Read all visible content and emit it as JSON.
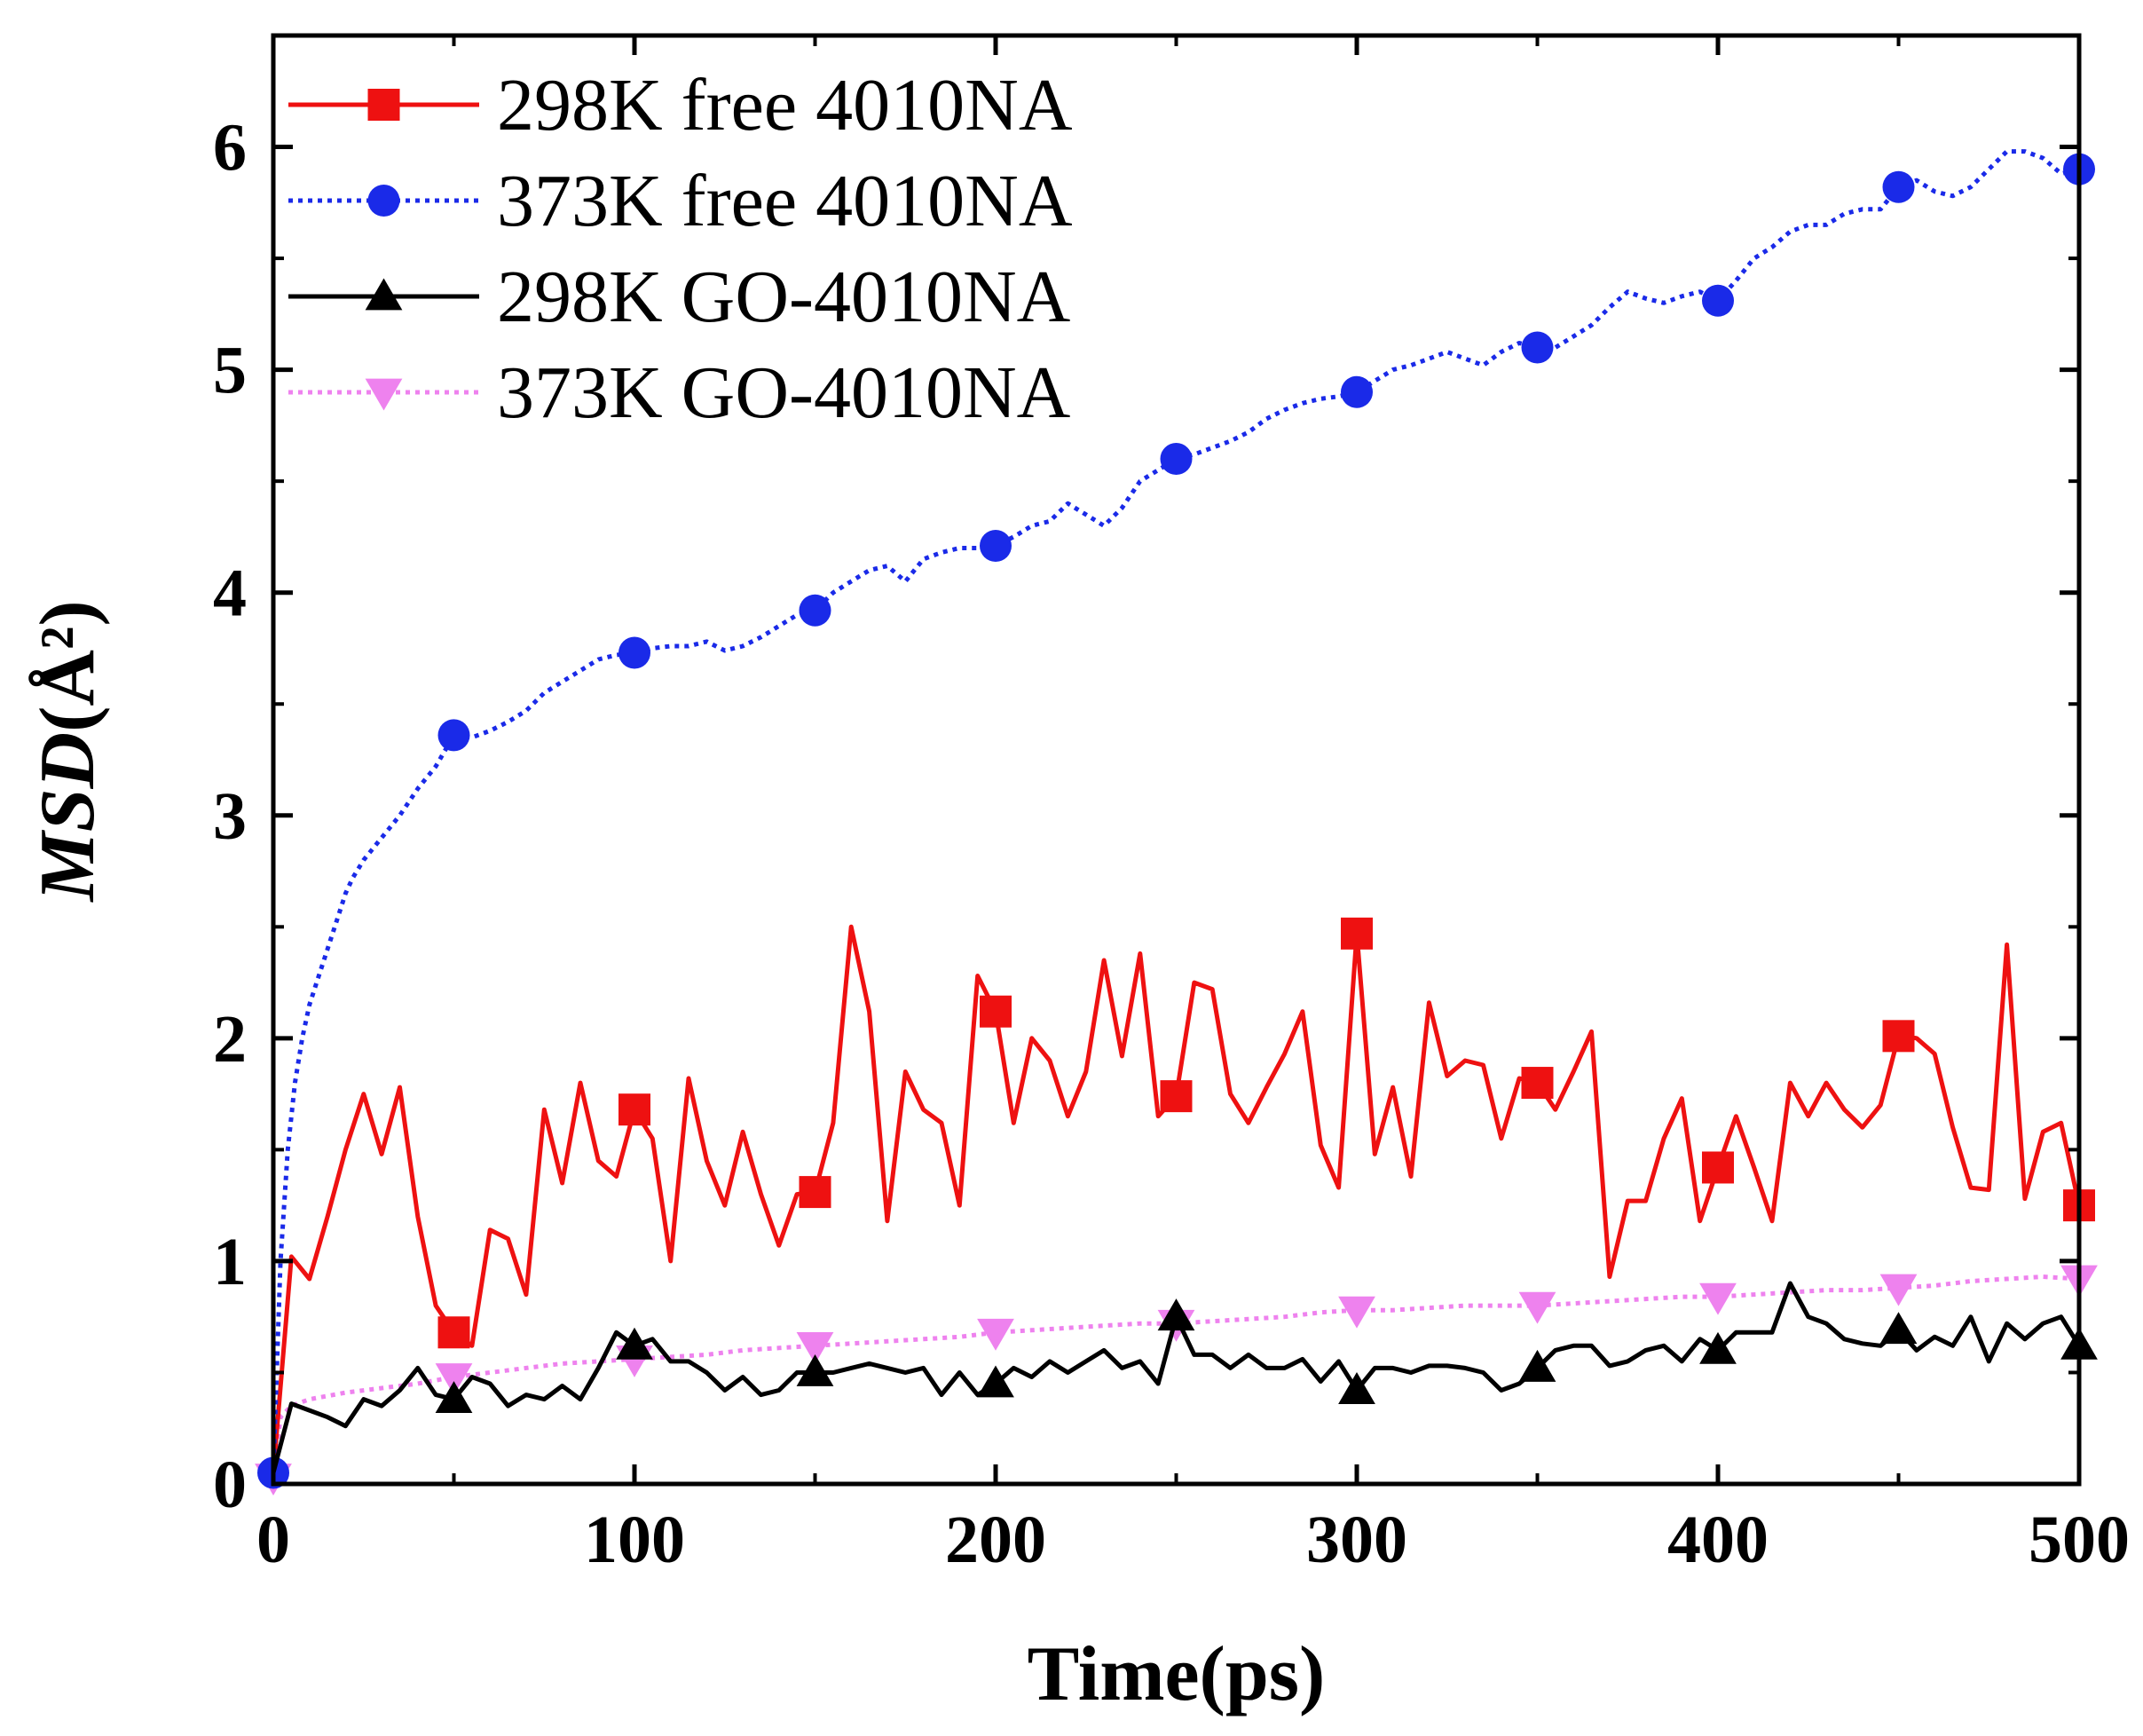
{
  "chart_data": {
    "type": "line",
    "title": "",
    "xlabel": "Time(ps)",
    "ylabel": {
      "italic": "MSD",
      "unit": "(Å²)"
    },
    "xlim": [
      0,
      500
    ],
    "ylim": [
      0,
      6.5
    ],
    "xticks": [
      0,
      100,
      200,
      300,
      400,
      500
    ],
    "xtick_labels": [
      "0",
      "100",
      "200",
      "300",
      "400",
      "500"
    ],
    "yticks": [
      0,
      1,
      2,
      3,
      4,
      5,
      6
    ],
    "ytick_labels": [
      "0",
      "1",
      "2",
      "3",
      "4",
      "5",
      "6"
    ],
    "grid": false,
    "legend_position": "top-left",
    "series": [
      {
        "name": "298K free 4010NA",
        "color": "#ee1111",
        "line_style": "solid",
        "marker": "square",
        "x": [
          0,
          5,
          10,
          15,
          20,
          25,
          30,
          35,
          40,
          45,
          50,
          55,
          60,
          65,
          70,
          75,
          80,
          85,
          90,
          95,
          100,
          105,
          110,
          115,
          120,
          125,
          130,
          135,
          140,
          145,
          150,
          155,
          160,
          165,
          170,
          175,
          180,
          185,
          190,
          195,
          200,
          205,
          210,
          215,
          220,
          225,
          230,
          235,
          240,
          245,
          250,
          255,
          260,
          265,
          270,
          275,
          280,
          285,
          290,
          295,
          300,
          305,
          310,
          315,
          320,
          325,
          330,
          335,
          340,
          345,
          350,
          355,
          360,
          365,
          370,
          375,
          380,
          385,
          390,
          395,
          400,
          405,
          410,
          415,
          420,
          425,
          430,
          435,
          440,
          445,
          450,
          455,
          460,
          465,
          470,
          475,
          480,
          485,
          490,
          495,
          500
        ],
        "values": [
          0.05,
          1.02,
          0.92,
          1.2,
          1.5,
          1.75,
          1.48,
          1.78,
          1.2,
          0.8,
          0.68,
          0.62,
          1.14,
          1.1,
          0.85,
          1.68,
          1.35,
          1.8,
          1.45,
          1.38,
          1.68,
          1.55,
          1.0,
          1.82,
          1.45,
          1.25,
          1.58,
          1.3,
          1.07,
          1.3,
          1.31,
          1.62,
          2.5,
          2.12,
          1.18,
          1.85,
          1.68,
          1.62,
          1.25,
          2.28,
          2.12,
          1.62,
          2.0,
          1.9,
          1.65,
          1.85,
          2.35,
          1.92,
          2.38,
          1.65,
          1.74,
          2.25,
          2.22,
          1.75,
          1.62,
          1.78,
          1.93,
          2.12,
          1.52,
          1.33,
          2.47,
          1.48,
          1.78,
          1.38,
          2.16,
          1.83,
          1.9,
          1.88,
          1.55,
          1.82,
          1.8,
          1.68,
          1.85,
          2.03,
          0.93,
          1.27,
          1.27,
          1.55,
          1.73,
          1.18,
          1.42,
          1.65,
          1.42,
          1.18,
          1.8,
          1.65,
          1.8,
          1.68,
          1.6,
          1.7,
          2.01,
          2.0,
          1.93,
          1.6,
          1.33,
          1.32,
          2.42,
          1.28,
          1.58,
          1.62,
          1.25
        ],
        "marker_x": [
          50,
          100,
          150,
          200,
          250,
          300,
          350,
          400,
          450,
          500
        ],
        "marker_values": [
          0.68,
          1.68,
          1.31,
          2.12,
          1.74,
          2.47,
          1.8,
          1.42,
          2.01,
          1.25
        ]
      },
      {
        "name": "373K free 4010NA",
        "color": "#1a2ae8",
        "line_style": "dotted",
        "marker": "circle",
        "x": [
          0,
          2,
          4,
          6,
          8,
          10,
          12,
          15,
          18,
          20,
          22,
          25,
          30,
          35,
          40,
          45,
          50,
          55,
          60,
          65,
          70,
          75,
          80,
          85,
          90,
          95,
          100,
          105,
          110,
          115,
          120,
          125,
          130,
          135,
          140,
          145,
          150,
          155,
          160,
          165,
          170,
          175,
          180,
          185,
          190,
          195,
          200,
          205,
          210,
          215,
          220,
          225,
          230,
          235,
          240,
          245,
          250,
          255,
          260,
          265,
          270,
          275,
          280,
          285,
          290,
          295,
          300,
          305,
          310,
          315,
          320,
          325,
          330,
          335,
          340,
          345,
          350,
          355,
          360,
          365,
          370,
          375,
          380,
          385,
          390,
          395,
          400,
          405,
          410,
          415,
          420,
          425,
          430,
          435,
          440,
          445,
          450,
          455,
          460,
          465,
          470,
          475,
          480,
          485,
          490,
          495,
          500
        ],
        "values": [
          0.05,
          1.0,
          1.5,
          1.8,
          2.0,
          2.15,
          2.25,
          2.4,
          2.55,
          2.65,
          2.72,
          2.8,
          2.9,
          3.0,
          3.12,
          3.22,
          3.36,
          3.35,
          3.38,
          3.42,
          3.47,
          3.55,
          3.6,
          3.65,
          3.7,
          3.72,
          3.73,
          3.75,
          3.76,
          3.76,
          3.78,
          3.74,
          3.76,
          3.8,
          3.85,
          3.9,
          3.92,
          4.0,
          4.05,
          4.1,
          4.12,
          4.05,
          4.15,
          4.18,
          4.2,
          4.2,
          4.21,
          4.25,
          4.3,
          4.32,
          4.4,
          4.35,
          4.3,
          4.38,
          4.5,
          4.55,
          4.6,
          4.62,
          4.65,
          4.68,
          4.72,
          4.78,
          4.82,
          4.85,
          4.87,
          4.88,
          4.9,
          4.95,
          5.0,
          5.02,
          5.05,
          5.08,
          5.05,
          5.02,
          5.08,
          5.12,
          5.1,
          5.1,
          5.15,
          5.2,
          5.28,
          5.35,
          5.32,
          5.3,
          5.33,
          5.35,
          5.31,
          5.4,
          5.5,
          5.55,
          5.62,
          5.65,
          5.65,
          5.7,
          5.72,
          5.72,
          5.82,
          5.85,
          5.8,
          5.78,
          5.82,
          5.9,
          5.98,
          5.98,
          5.95,
          5.88,
          5.9
        ],
        "marker_x": [
          0,
          50,
          100,
          150,
          200,
          250,
          300,
          350,
          400,
          450,
          500
        ],
        "marker_values": [
          0.05,
          3.36,
          3.73,
          3.92,
          4.21,
          4.6,
          4.9,
          5.1,
          5.31,
          5.82,
          5.9
        ]
      },
      {
        "name": "298K GO-4010NA",
        "color": "#000000",
        "line_style": "solid",
        "marker": "triangle-up",
        "x": [
          0,
          5,
          10,
          15,
          20,
          25,
          30,
          35,
          40,
          45,
          50,
          55,
          60,
          65,
          70,
          75,
          80,
          85,
          90,
          95,
          100,
          105,
          110,
          115,
          120,
          125,
          130,
          135,
          140,
          145,
          150,
          155,
          160,
          165,
          170,
          175,
          180,
          185,
          190,
          195,
          200,
          205,
          210,
          215,
          220,
          225,
          230,
          235,
          240,
          245,
          250,
          255,
          260,
          265,
          270,
          275,
          280,
          285,
          290,
          295,
          300,
          305,
          310,
          315,
          320,
          325,
          330,
          335,
          340,
          345,
          350,
          355,
          360,
          365,
          370,
          375,
          380,
          385,
          390,
          395,
          400,
          405,
          410,
          415,
          420,
          425,
          430,
          435,
          440,
          445,
          450,
          455,
          460,
          465,
          470,
          475,
          480,
          485,
          490,
          495,
          500
        ],
        "values": [
          0.05,
          0.36,
          0.33,
          0.3,
          0.26,
          0.38,
          0.35,
          0.42,
          0.52,
          0.4,
          0.38,
          0.48,
          0.45,
          0.35,
          0.4,
          0.38,
          0.44,
          0.38,
          0.52,
          0.68,
          0.62,
          0.65,
          0.55,
          0.55,
          0.5,
          0.42,
          0.48,
          0.4,
          0.42,
          0.5,
          0.5,
          0.5,
          0.52,
          0.54,
          0.52,
          0.5,
          0.52,
          0.4,
          0.5,
          0.4,
          0.45,
          0.52,
          0.48,
          0.55,
          0.5,
          0.55,
          0.6,
          0.52,
          0.55,
          0.45,
          0.75,
          0.58,
          0.58,
          0.52,
          0.58,
          0.52,
          0.52,
          0.56,
          0.46,
          0.55,
          0.42,
          0.52,
          0.52,
          0.5,
          0.53,
          0.53,
          0.52,
          0.5,
          0.42,
          0.45,
          0.52,
          0.6,
          0.62,
          0.62,
          0.53,
          0.55,
          0.6,
          0.62,
          0.55,
          0.65,
          0.6,
          0.68,
          0.68,
          0.68,
          0.9,
          0.75,
          0.72,
          0.65,
          0.63,
          0.62,
          0.69,
          0.6,
          0.66,
          0.62,
          0.75,
          0.55,
          0.72,
          0.65,
          0.72,
          0.75,
          0.62
        ],
        "marker_x": [
          50,
          100,
          150,
          200,
          250,
          300,
          350,
          400,
          450,
          500
        ],
        "marker_values": [
          0.38,
          0.62,
          0.5,
          0.45,
          0.75,
          0.42,
          0.52,
          0.6,
          0.69,
          0.62
        ]
      },
      {
        "name": "373K GO-4010NA",
        "color": "#ee82ee",
        "line_style": "dotted",
        "marker": "triangle-down",
        "x": [
          0,
          2,
          5,
          10,
          20,
          30,
          40,
          50,
          60,
          70,
          80,
          90,
          100,
          110,
          120,
          130,
          140,
          150,
          160,
          170,
          180,
          190,
          200,
          210,
          220,
          230,
          240,
          250,
          260,
          270,
          280,
          290,
          300,
          310,
          320,
          330,
          340,
          350,
          360,
          370,
          380,
          390,
          400,
          410,
          420,
          430,
          440,
          450,
          460,
          470,
          480,
          490,
          500
        ],
        "values": [
          0.03,
          0.3,
          0.35,
          0.38,
          0.41,
          0.43,
          0.45,
          0.48,
          0.5,
          0.52,
          0.54,
          0.55,
          0.56,
          0.57,
          0.58,
          0.6,
          0.61,
          0.62,
          0.63,
          0.64,
          0.65,
          0.66,
          0.68,
          0.69,
          0.7,
          0.71,
          0.72,
          0.72,
          0.73,
          0.74,
          0.75,
          0.77,
          0.78,
          0.78,
          0.79,
          0.8,
          0.8,
          0.8,
          0.81,
          0.82,
          0.83,
          0.84,
          0.84,
          0.85,
          0.86,
          0.87,
          0.87,
          0.88,
          0.89,
          0.91,
          0.92,
          0.93,
          0.92
        ],
        "marker_x": [
          0,
          50,
          100,
          150,
          200,
          250,
          300,
          350,
          400,
          450,
          500
        ],
        "marker_values": [
          0.03,
          0.48,
          0.56,
          0.62,
          0.68,
          0.72,
          0.78,
          0.8,
          0.84,
          0.88,
          0.92
        ]
      }
    ]
  }
}
